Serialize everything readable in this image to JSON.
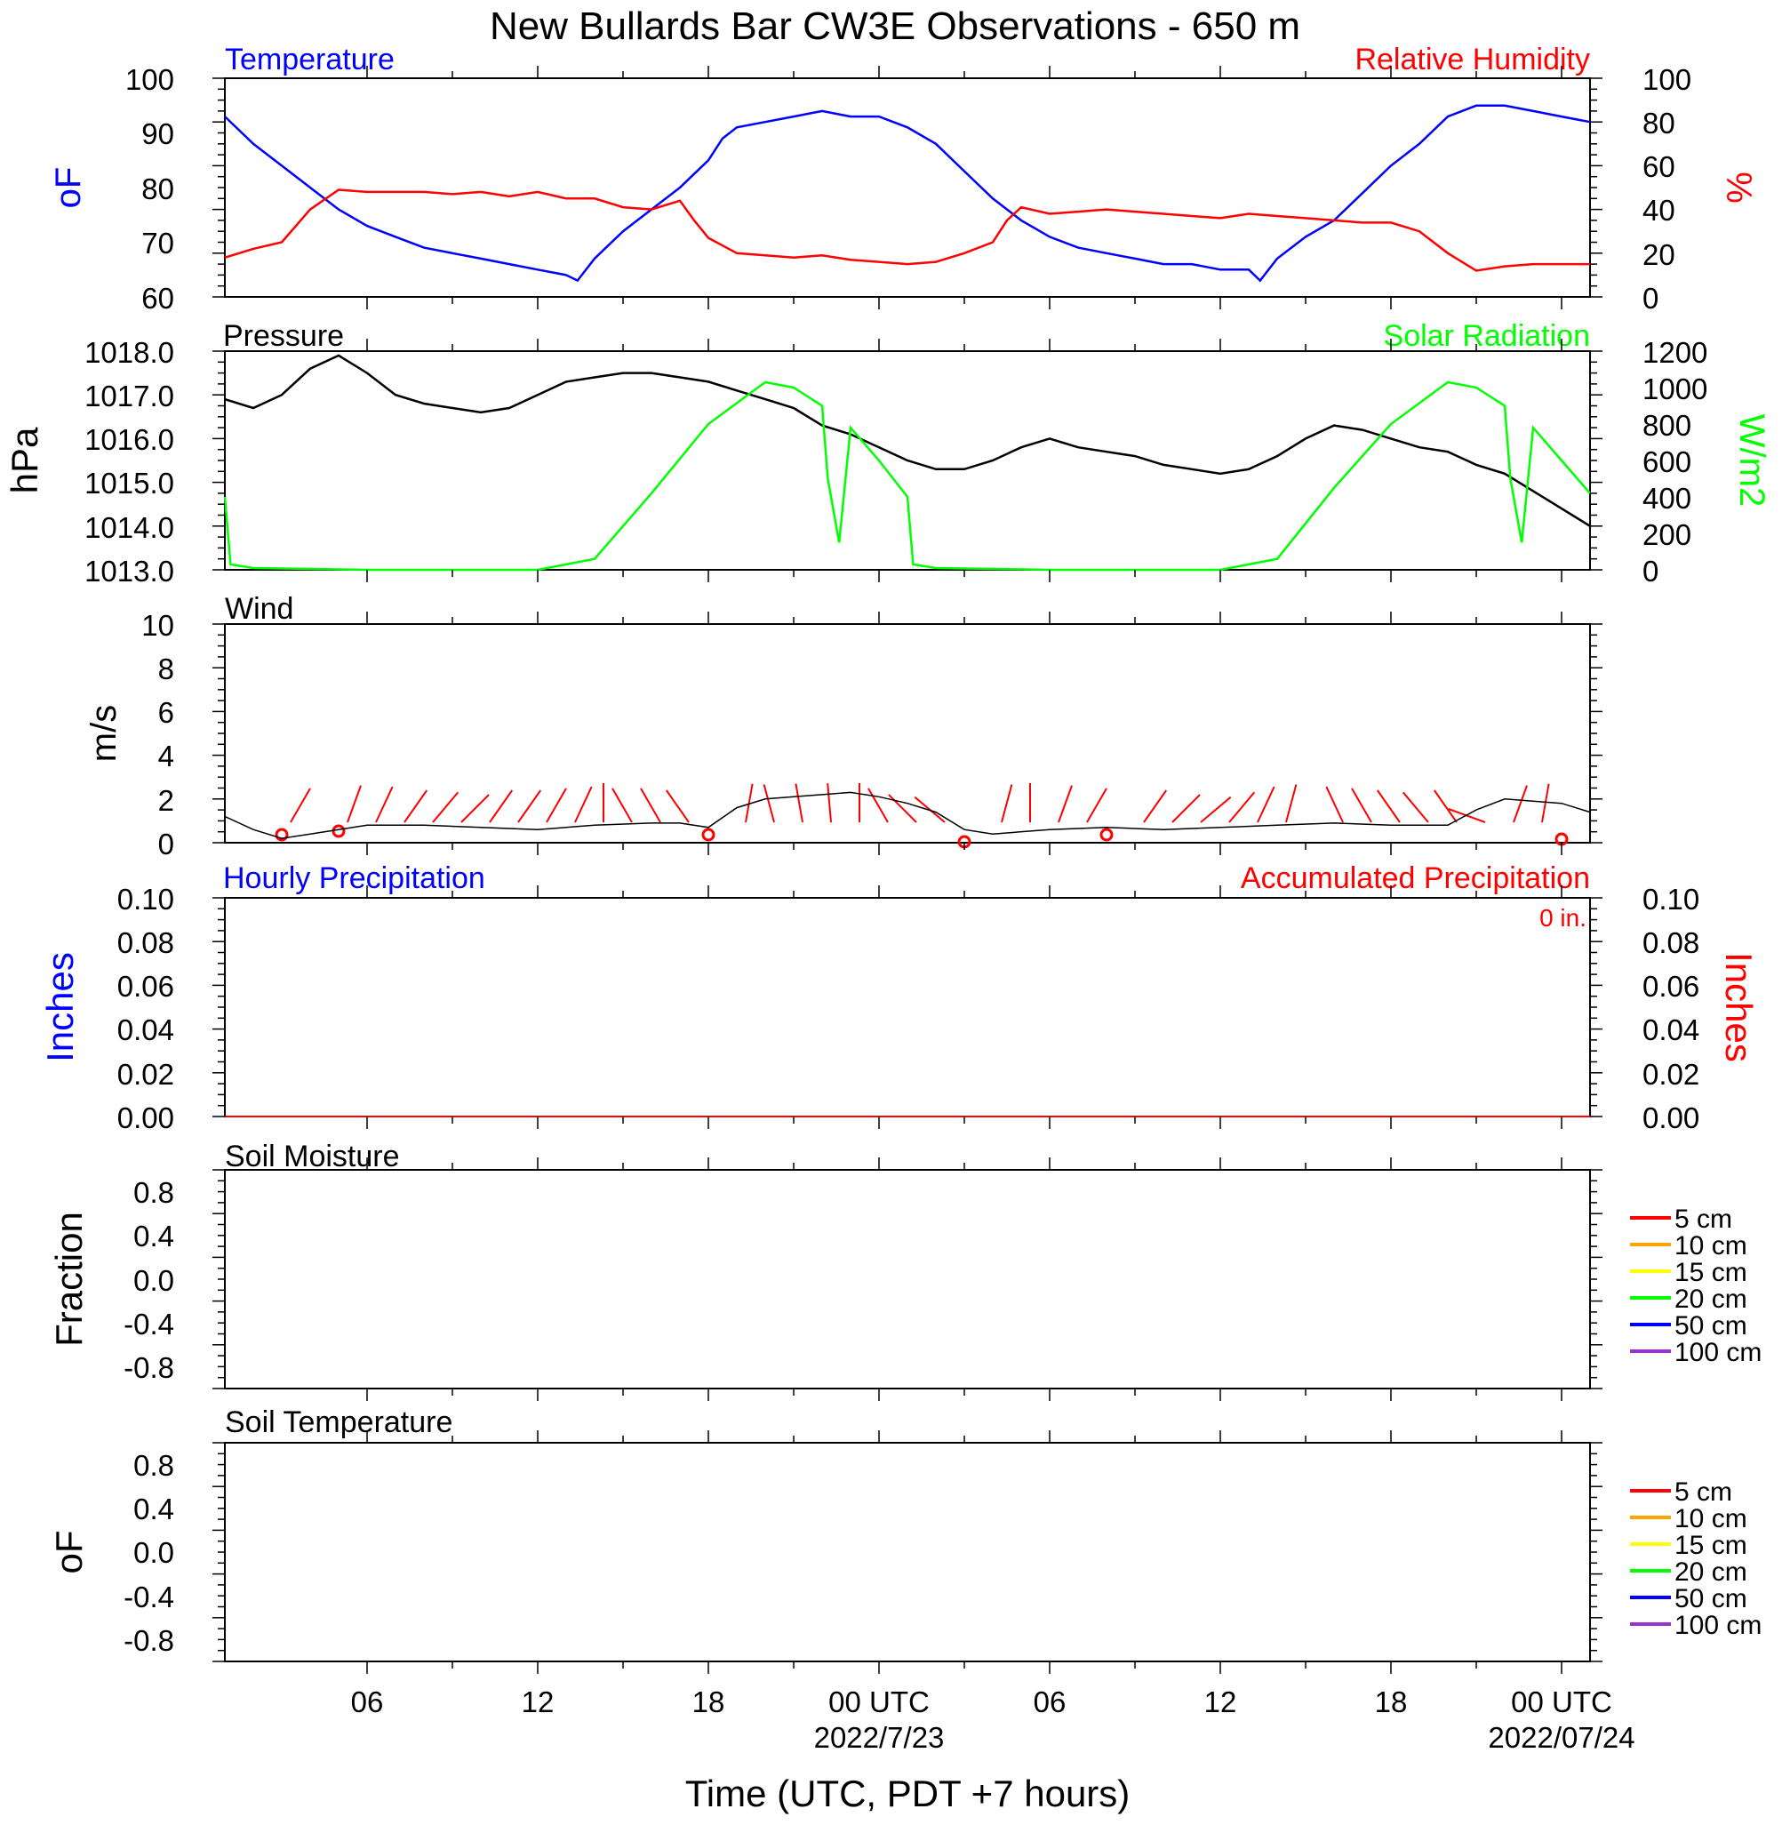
{
  "title": "New Bullards Bar CW3E Observations - 650 m",
  "colors": {
    "temperature": "#0000ff",
    "humidity": "#ff0000",
    "pressure": "#000000",
    "solar": "#00ff00",
    "wind": "#000000",
    "barb": "#ff0000",
    "hourly_precip": "#0000ff",
    "accum_precip": "#ff0000",
    "soil_5": "#ff0000",
    "soil_10": "#ffa500",
    "soil_15": "#ffff00",
    "soil_20": "#00ff00",
    "soil_50": "#0000ff",
    "soil_100": "#9932cc"
  },
  "x_axis": {
    "title": "Time (UTC, PDT +7 hours)",
    "tick_labels": [
      "06",
      "12",
      "18",
      "00 UTC",
      "06",
      "12",
      "18",
      "00 UTC"
    ],
    "date_labels": [
      "2022/7/23",
      "2022/07/24"
    ]
  },
  "panels": {
    "temp_rh": {
      "left_title": "Temperature",
      "right_title": "Relative Humidity",
      "left_units": "oF",
      "right_units": "%",
      "left_ticks": [
        "100",
        "90",
        "80",
        "70",
        "60"
      ],
      "right_ticks": [
        "100",
        "80",
        "60",
        "40",
        "20",
        "0"
      ]
    },
    "pressure_solar": {
      "left_title": "Pressure",
      "right_title": "Solar Radiation",
      "left_units": "hPa",
      "right_units": "W/m2",
      "left_ticks": [
        "1018.0",
        "1017.0",
        "1016.0",
        "1015.0",
        "1014.0",
        "1013.0"
      ],
      "right_ticks": [
        "1200",
        "1000",
        "800",
        "600",
        "400",
        "200",
        "0"
      ]
    },
    "wind": {
      "left_title": "Wind",
      "left_units": "m/s",
      "left_ticks": [
        "10",
        "8",
        "6",
        "4",
        "2",
        "0"
      ]
    },
    "precip": {
      "left_title": "Hourly Precipitation",
      "right_title": "Accumulated Precipitation",
      "accum_total": "0 in.",
      "left_units": "Inches",
      "right_units": "Inches",
      "left_ticks": [
        "0.10",
        "0.08",
        "0.06",
        "0.04",
        "0.02",
        "0.00"
      ],
      "right_ticks": [
        "0.10",
        "0.08",
        "0.06",
        "0.04",
        "0.02",
        "0.00"
      ]
    },
    "soil_moisture": {
      "left_title": "Soil Moisture",
      "left_units": "Fraction",
      "left_ticks": [
        "0.8",
        "0.4",
        "0.0",
        "-0.4",
        "-0.8"
      ],
      "legend": [
        "5 cm",
        "10 cm",
        "15 cm",
        "20 cm",
        "50 cm",
        "100 cm"
      ]
    },
    "soil_temperature": {
      "left_title": "Soil Temperature",
      "left_units": "oF",
      "left_ticks": [
        "0.8",
        "0.4",
        "0.0",
        "-0.4",
        "-0.8"
      ],
      "legend": [
        "5 cm",
        "10 cm",
        "15 cm",
        "20 cm",
        "50 cm",
        "100 cm"
      ]
    }
  },
  "chart_data": [
    {
      "type": "line",
      "title": "Temperature",
      "ylabel": "oF",
      "x_unit": "hours since 2022-07-22 00 UTC",
      "xlim": [
        1,
        49
      ],
      "ylim": [
        60,
        100
      ],
      "series": [
        {
          "name": "Temperature",
          "x": [
            1,
            2,
            3,
            4,
            5,
            6,
            7,
            8,
            9,
            10,
            11,
            12,
            13,
            13.4,
            14,
            15,
            16,
            17,
            18,
            18.5,
            19,
            20,
            21,
            22,
            23,
            24,
            25,
            26,
            27,
            28,
            29,
            30,
            31,
            32,
            33,
            34,
            35,
            36,
            37,
            37.4,
            38,
            39,
            40,
            41,
            42,
            43,
            44,
            45,
            46,
            47,
            48,
            49
          ],
          "y": [
            93,
            88,
            84,
            80,
            76,
            73,
            71,
            69,
            68,
            67,
            66,
            65,
            64,
            63,
            67,
            72,
            76,
            80,
            85,
            89,
            91,
            92,
            93,
            94,
            93,
            93,
            91,
            88,
            83,
            78,
            74,
            71,
            69,
            68,
            67,
            66,
            66,
            65,
            65,
            63,
            67,
            71,
            74,
            79,
            84,
            88,
            93,
            95,
            95,
            94,
            93,
            92
          ]
        },
        {
          "name": "Relative Humidity",
          "x": [
            1,
            2,
            3,
            4,
            5,
            6,
            7,
            8,
            9,
            10,
            11,
            12,
            13,
            14,
            15,
            16,
            17,
            17.5,
            18,
            19,
            20,
            21,
            22,
            23,
            24,
            25,
            26,
            27,
            28,
            28.5,
            29,
            30,
            31,
            32,
            33,
            34,
            35,
            36,
            37,
            38,
            39,
            40,
            41,
            42,
            43,
            44,
            45,
            46,
            47,
            48,
            49
          ],
          "y": [
            18,
            22,
            25,
            40,
            49,
            48,
            48,
            48,
            47,
            48,
            46,
            48,
            45,
            45,
            41,
            40,
            44,
            35,
            27,
            20,
            19,
            18,
            19,
            17,
            16,
            15,
            16,
            20,
            25,
            35,
            41,
            38,
            39,
            40,
            39,
            38,
            37,
            36,
            38,
            37,
            36,
            35,
            34,
            34,
            30,
            20,
            12,
            14,
            15,
            15,
            15
          ]
        }
      ],
      "y2lim": [
        0,
        100
      ],
      "y2label": "%"
    },
    {
      "type": "line",
      "title": "Pressure",
      "ylabel": "hPa",
      "xlim": [
        1,
        49
      ],
      "ylim": [
        1013,
        1018
      ],
      "series": [
        {
          "name": "Pressure",
          "x": [
            1,
            2,
            3,
            4,
            5,
            6,
            7,
            8,
            9,
            10,
            11,
            12,
            13,
            14,
            15,
            16,
            17,
            18,
            19,
            20,
            21,
            22,
            23,
            24,
            25,
            26,
            27,
            28,
            29,
            30,
            31,
            32,
            33,
            34,
            35,
            36,
            37,
            38,
            39,
            40,
            41,
            42,
            43,
            44,
            45,
            46,
            47,
            48,
            49
          ],
          "y": [
            1016.9,
            1016.7,
            1017.0,
            1017.6,
            1017.9,
            1017.5,
            1017.0,
            1016.8,
            1016.7,
            1016.6,
            1016.7,
            1017.0,
            1017.3,
            1017.4,
            1017.5,
            1017.5,
            1017.4,
            1017.3,
            1017.1,
            1016.9,
            1016.7,
            1016.3,
            1016.1,
            1015.8,
            1015.5,
            1015.3,
            1015.3,
            1015.5,
            1015.8,
            1016.0,
            1015.8,
            1015.7,
            1015.6,
            1015.4,
            1015.3,
            1015.2,
            1015.3,
            1015.6,
            1016.0,
            1016.3,
            1016.2,
            1016.0,
            1015.8,
            1015.7,
            1015.4,
            1015.2,
            1014.8,
            1014.4,
            1014.0
          ]
        },
        {
          "name": "Solar Radiation",
          "x": [
            1,
            1.2,
            2,
            6,
            12,
            14,
            16,
            18,
            20,
            21,
            22,
            22.2,
            22.6,
            23,
            24,
            25,
            25.2,
            26,
            30,
            36,
            38,
            40,
            42,
            44,
            45,
            46,
            46.2,
            46.6,
            47,
            48,
            49
          ],
          "y": [
            400,
            30,
            10,
            0,
            0,
            60,
            420,
            800,
            1030,
            1000,
            900,
            500,
            150,
            780,
            600,
            400,
            30,
            10,
            0,
            0,
            60,
            450,
            800,
            1030,
            1000,
            900,
            500,
            150,
            780,
            600,
            420
          ]
        }
      ],
      "y2lim": [
        0,
        1200
      ],
      "y2label": "W/m2"
    },
    {
      "type": "line",
      "title": "Wind",
      "ylabel": "m/s",
      "xlim": [
        1,
        49
      ],
      "ylim": [
        0,
        10
      ],
      "series": [
        {
          "name": "Wind speed",
          "x": [
            1,
            2,
            3,
            4,
            5,
            6,
            8,
            10,
            12,
            14,
            16,
            17,
            18,
            19,
            20,
            21,
            22,
            23,
            24,
            25,
            26,
            27,
            28,
            30,
            32,
            34,
            36,
            38,
            40,
            42,
            44,
            45,
            46,
            47,
            48,
            49
          ],
          "y": [
            1.2,
            0.6,
            0.2,
            0.4,
            0.6,
            0.8,
            0.8,
            0.7,
            0.6,
            0.8,
            0.9,
            0.9,
            0.7,
            1.6,
            2.0,
            2.1,
            2.2,
            2.3,
            2.1,
            1.8,
            1.4,
            0.6,
            0.4,
            0.6,
            0.7,
            0.6,
            0.7,
            0.8,
            0.9,
            0.8,
            0.8,
            1.5,
            2.0,
            1.9,
            1.8,
            1.4
          ]
        }
      ]
    },
    {
      "type": "line",
      "title": "Hourly Precipitation",
      "ylabel": "Inches",
      "xlim": [
        1,
        49
      ],
      "ylim": [
        0,
        0.1
      ],
      "series": [
        {
          "name": "Hourly Precipitation",
          "x": [
            1,
            49
          ],
          "y": [
            0,
            0
          ]
        },
        {
          "name": "Accumulated Precipitation",
          "x": [
            1,
            49
          ],
          "y": [
            0,
            0
          ]
        }
      ]
    }
  ]
}
